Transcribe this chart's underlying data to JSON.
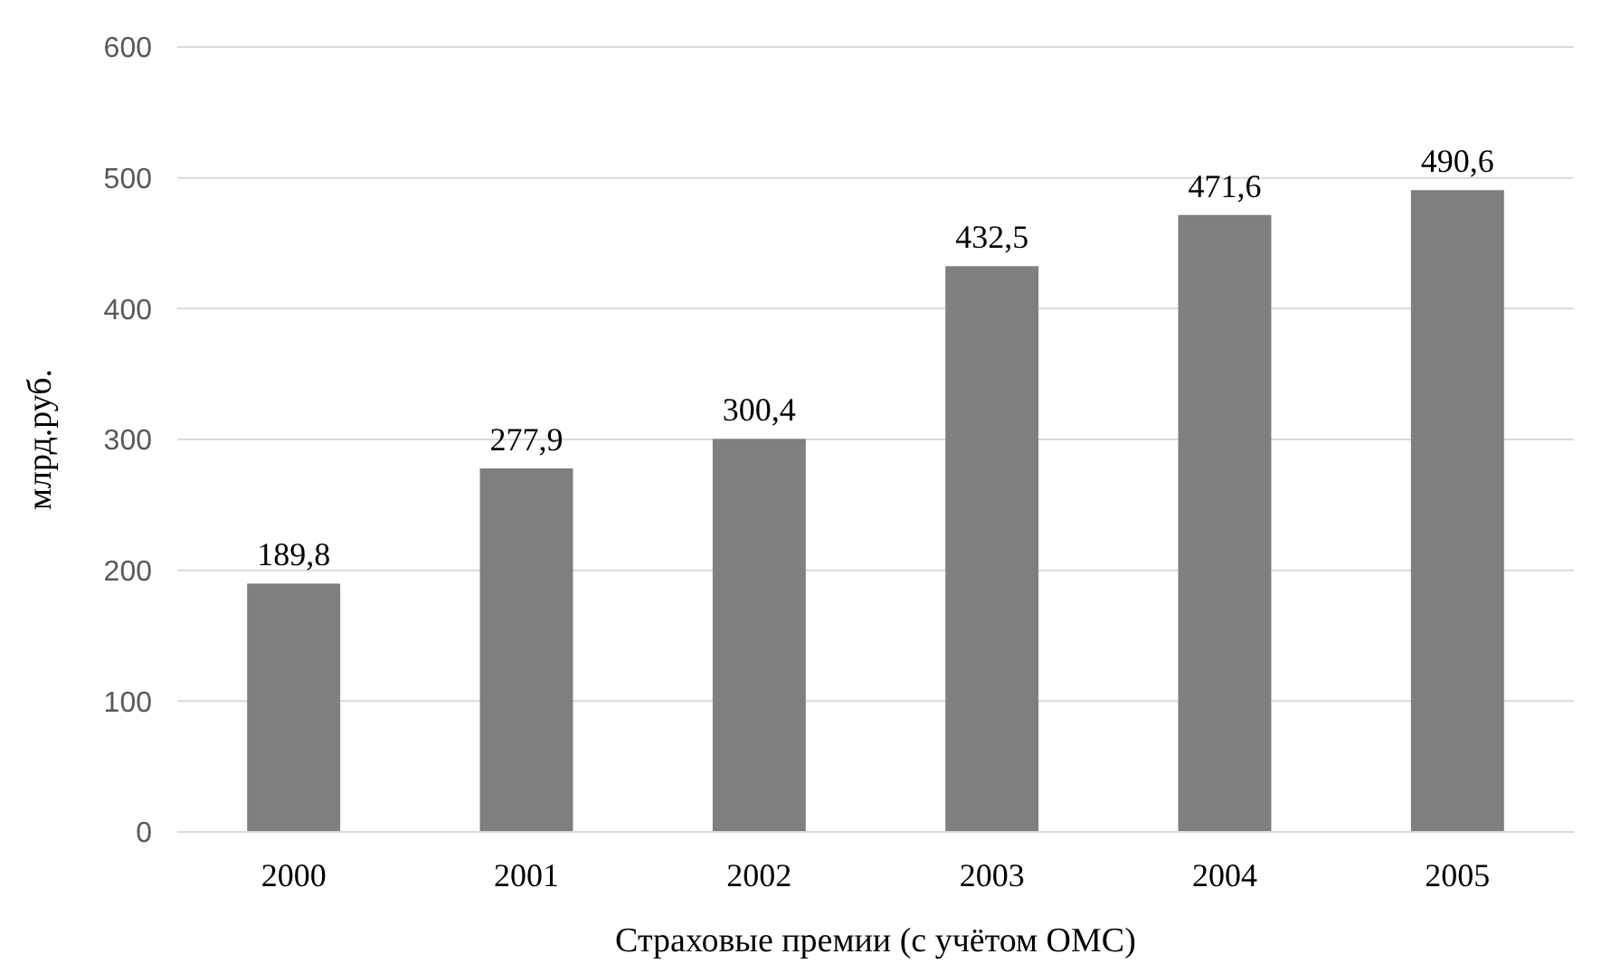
{
  "chart_data": {
    "type": "bar",
    "xlabel": "Страховые премии (с учётом ОМС)",
    "ylabel": "млрд.руб.",
    "categories": [
      "2000",
      "2001",
      "2002",
      "2003",
      "2004",
      "2005"
    ],
    "values": [
      189.8,
      277.9,
      300.4,
      432.5,
      471.6,
      490.6
    ],
    "value_labels": [
      "189,8",
      "277,9",
      "300,4",
      "432,5",
      "471,6",
      "490,6"
    ],
    "color": "#7f7f7f",
    "ylim": [
      0,
      600
    ],
    "yticks": [
      0,
      100,
      200,
      300,
      400,
      500,
      600
    ],
    "grid": "y"
  }
}
